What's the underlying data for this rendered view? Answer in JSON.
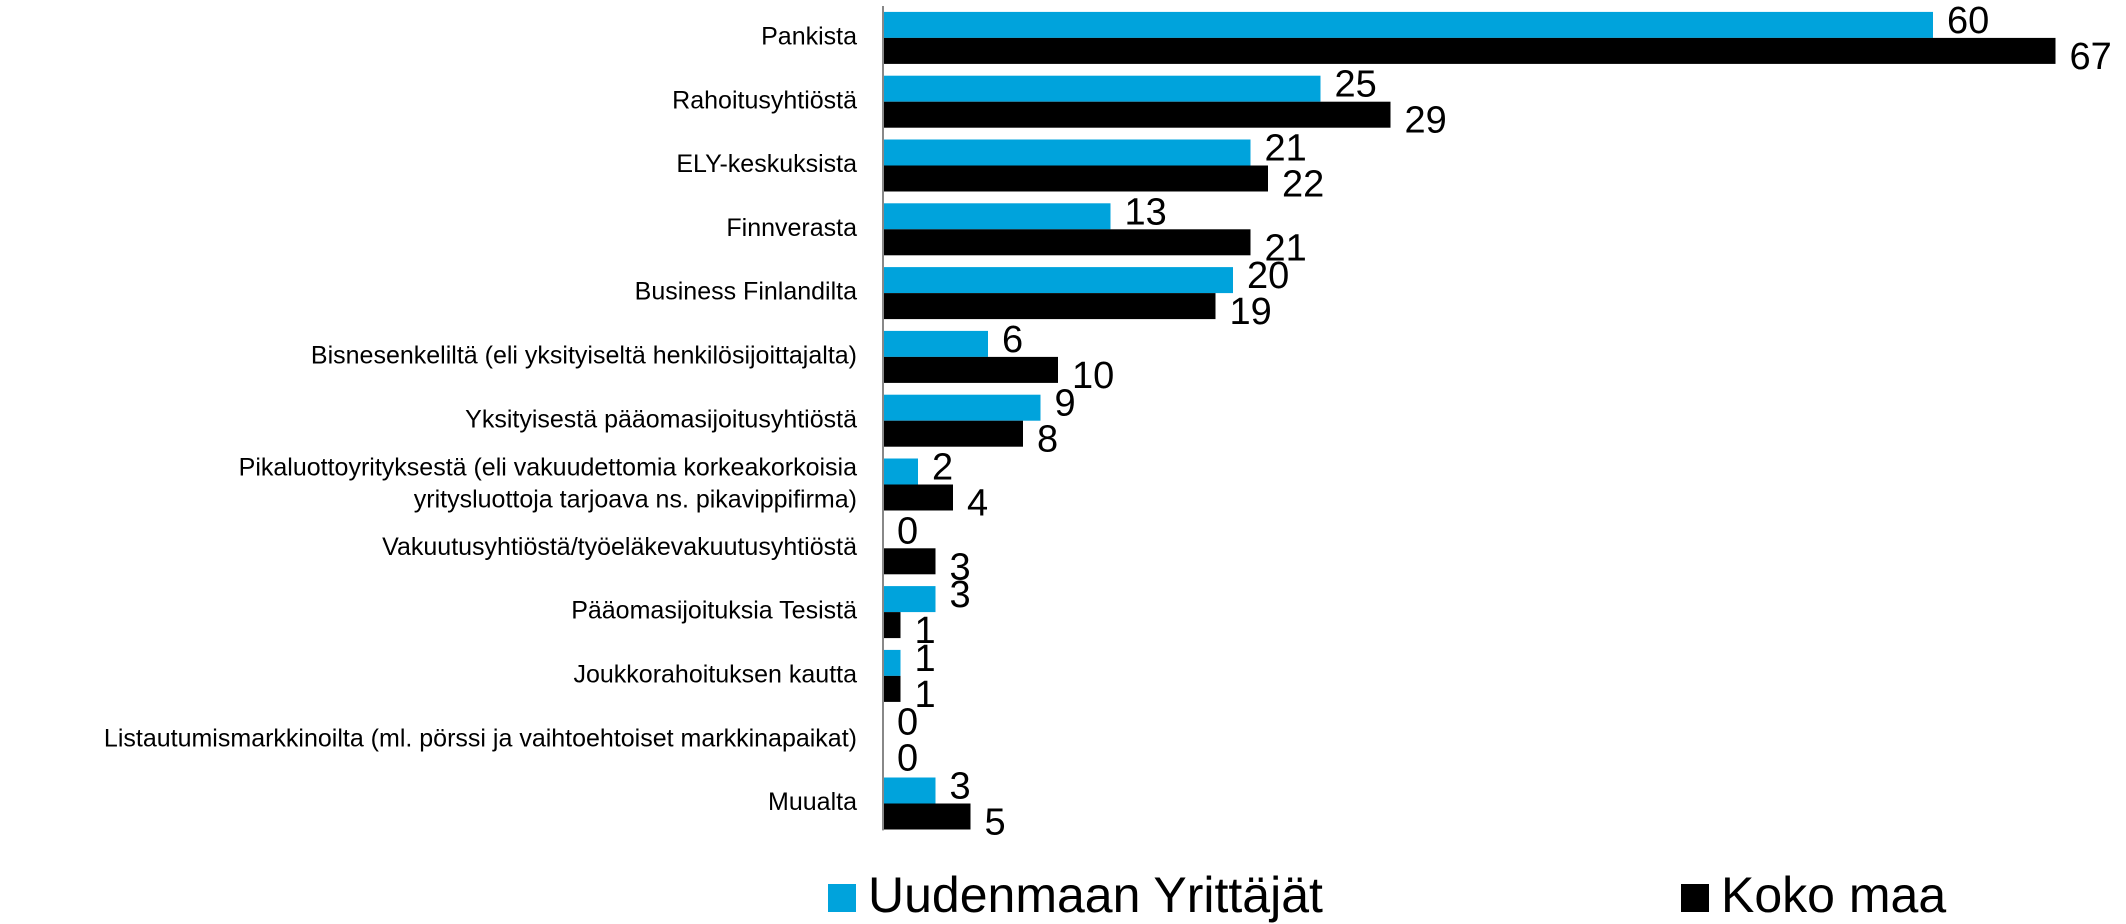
{
  "chart_data": {
    "type": "bar",
    "orientation": "horizontal",
    "categories": [
      "Pankista",
      "Rahoitusyhtiöstä",
      "ELY-keskuksista",
      "Finnverasta",
      "Business Finlandilta",
      "Bisnesenkeliltä (eli yksityiseltä henkilösijoittajalta)",
      "Yksityisestä pääomasijoitusyhtiöstä",
      "Pikaluottoyrityksestä (eli vakuudettomia korkeakorkoisia\nyritysluottoja tarjoava ns. pikavippifirma)",
      "Vakuutusyhtiöstä/työeläkevakuutusyhtiöstä",
      "Pääomasijoituksia Tesistä",
      "Joukkorahoituksen kautta",
      "Listautumismarkkinoilta (ml. pörssi ja vaihtoehtoiset markkinapaikat)",
      "Muualta"
    ],
    "series": [
      {
        "name": "Uudenmaan Yrittäjät",
        "color": "#00a3dc",
        "values": [
          60,
          25,
          21,
          13,
          20,
          6,
          9,
          2,
          0,
          3,
          1,
          0,
          3
        ]
      },
      {
        "name": "Koko maa",
        "color": "#000000",
        "values": [
          67,
          29,
          22,
          21,
          19,
          10,
          8,
          4,
          3,
          1,
          1,
          0,
          5
        ]
      }
    ],
    "xlim": [
      0,
      70
    ],
    "legend": "bottom"
  }
}
